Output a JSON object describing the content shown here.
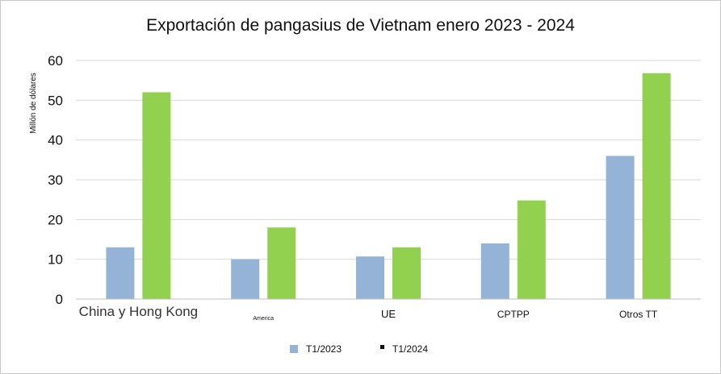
{
  "chart_data": {
    "type": "bar",
    "title": "Exportación de pangasius de Vietnam enero 2023 - 2024",
    "ylabel": "Millón de dólares",
    "xlabel": "",
    "categories": [
      "China y Hong Kong",
      "America",
      "UE",
      "CPTPP",
      "Otros TT"
    ],
    "series": [
      {
        "name": "T1/2023",
        "values": [
          13,
          10,
          10.7,
          14,
          36
        ],
        "color": "#95b3d7"
      },
      {
        "name": "T1/2024",
        "values": [
          52,
          18,
          13,
          24.8,
          56.8
        ],
        "color": "#92d050"
      }
    ],
    "ylim": [
      0,
      60
    ],
    "yticks": [
      "0",
      "10",
      "20",
      "30",
      "40",
      "50",
      "60"
    ],
    "grid": true,
    "legend": "bottom"
  }
}
